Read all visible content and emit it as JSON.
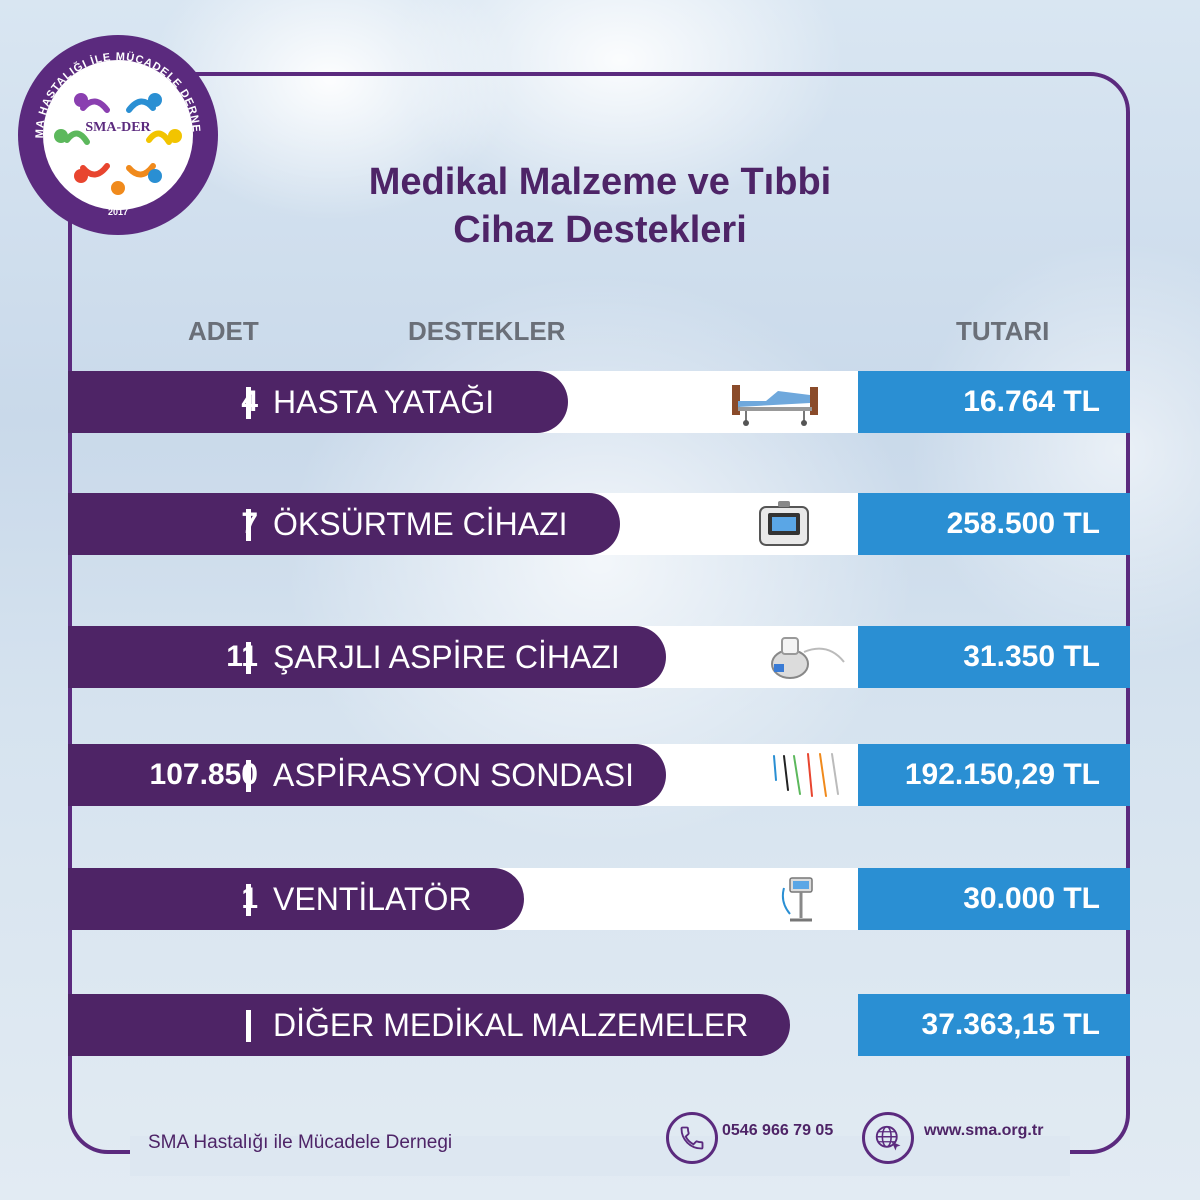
{
  "logo": {
    "ring_text": "SMA HASTALIĞI İLE MÜCADELE DERNEĞİ",
    "name": "SMA-DER",
    "year": "2017"
  },
  "title": {
    "line1": "Medikal Malzeme ve Tıbbi",
    "line2": "Cihaz Destekleri"
  },
  "headers": {
    "qty": "ADET",
    "item": "DESTEKLER",
    "amount": "TUTARI"
  },
  "rows": [
    {
      "qty": "4",
      "label": "HASTA YATAĞI",
      "amount": "16.764 TL",
      "icon": "hospital-bed"
    },
    {
      "qty": "7",
      "label": "ÖKSÜRTME CİHAZI",
      "amount": "258.500 TL",
      "icon": "cough-assist-device"
    },
    {
      "qty": "11",
      "label": "ŞARJLI ASPİRE CİHAZI",
      "amount": "31.350 TL",
      "icon": "suction-device"
    },
    {
      "qty": "107.850",
      "label": "ASPİRASYON SONDASI",
      "amount": "192.150,29 TL",
      "icon": "suction-catheters"
    },
    {
      "qty": "1",
      "label": "VENTİLATÖR",
      "amount": "30.000 TL",
      "icon": "ventilator"
    },
    {
      "qty": "",
      "label": "DİĞER MEDİKAL MALZEMELER",
      "amount": "37.363,15 TL",
      "icon": ""
    }
  ],
  "footer": {
    "org": "SMA Hastalığı ile Mücadele Dernegi",
    "phone": "0546 966 79 05",
    "website": "www.sma.org.tr"
  },
  "colors": {
    "purple": "#4e2466",
    "blue": "#2a8fd3",
    "frame": "#5b2a7e"
  }
}
